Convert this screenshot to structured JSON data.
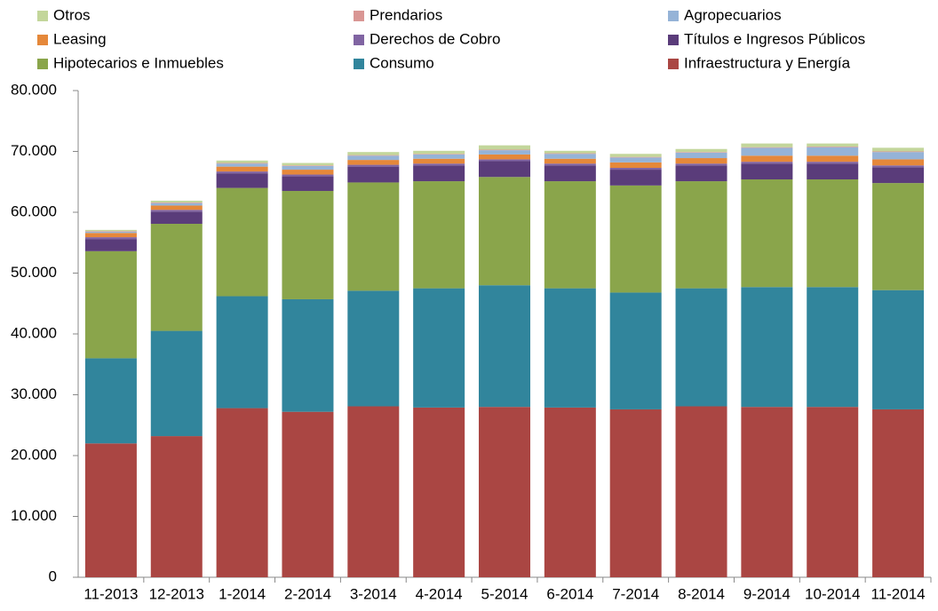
{
  "chart_data": {
    "type": "stacked_bar",
    "categories": [
      "11-2013",
      "12-2013",
      "1-2014",
      "2-2014",
      "3-2014",
      "4-2014",
      "5-2014",
      "6-2014",
      "7-2014",
      "8-2014",
      "9-2014",
      "10-2014",
      "11-2014"
    ],
    "series": [
      {
        "name": "Infraestructura y Energía",
        "color": "#aa4643",
        "values": [
          22000,
          23200,
          27800,
          27200,
          28100,
          27900,
          28000,
          27900,
          27600,
          28100,
          28000,
          28000,
          27600
        ]
      },
      {
        "name": "Consumo",
        "color": "#31859c",
        "values": [
          14000,
          17300,
          18400,
          18500,
          19000,
          19600,
          20000,
          19600,
          19200,
          19400,
          19700,
          19700,
          19600
        ]
      },
      {
        "name": "Hipotecarios e Inmuebles",
        "color": "#8aa54b",
        "values": [
          17600,
          17600,
          17800,
          17800,
          17800,
          17600,
          17800,
          17600,
          17600,
          17600,
          17700,
          17700,
          17600
        ]
      },
      {
        "name": "Títulos e Ingresos Públicos",
        "color": "#5a3c7a",
        "values": [
          2000,
          2000,
          2400,
          2400,
          2600,
          2600,
          2600,
          2600,
          2600,
          2600,
          2600,
          2600,
          2600
        ]
      },
      {
        "name": "Derechos de Cobro",
        "color": "#8064a2",
        "values": [
          300,
          300,
          300,
          300,
          300,
          300,
          300,
          300,
          300,
          300,
          300,
          300,
          300
        ]
      },
      {
        "name": "Leasing",
        "color": "#e5883a",
        "values": [
          700,
          700,
          800,
          800,
          800,
          800,
          800,
          800,
          900,
          900,
          1000,
          1000,
          1000
        ]
      },
      {
        "name": "Agropecuarios",
        "color": "#95b3d7",
        "values": [
          200,
          400,
          500,
          600,
          700,
          700,
          700,
          800,
          800,
          900,
          1300,
          1400,
          1200
        ]
      },
      {
        "name": "Prendarios",
        "color": "#d99694",
        "values": [
          100,
          100,
          100,
          100,
          100,
          100,
          100,
          100,
          100,
          100,
          100,
          100,
          100
        ]
      },
      {
        "name": "Otros",
        "color": "#c3d69b",
        "values": [
          200,
          300,
          400,
          400,
          500,
          500,
          700,
          400,
          500,
          500,
          600,
          500,
          600
        ]
      }
    ],
    "ylim": [
      0,
      80000
    ],
    "yticks": [
      0,
      {
        "value": 10000,
        "label": "10.000"
      },
      {
        "value": 20000,
        "label": "20.000"
      },
      {
        "value": 30000,
        "label": "30.000"
      },
      {
        "value": 40000,
        "label": "40.000"
      },
      {
        "value": 50000,
        "label": "50.000"
      },
      {
        "value": 60000,
        "label": "60.000"
      },
      {
        "value": 70000,
        "label": "70.000"
      },
      {
        "value": 80000,
        "label": "80.000"
      }
    ],
    "grid": false
  }
}
